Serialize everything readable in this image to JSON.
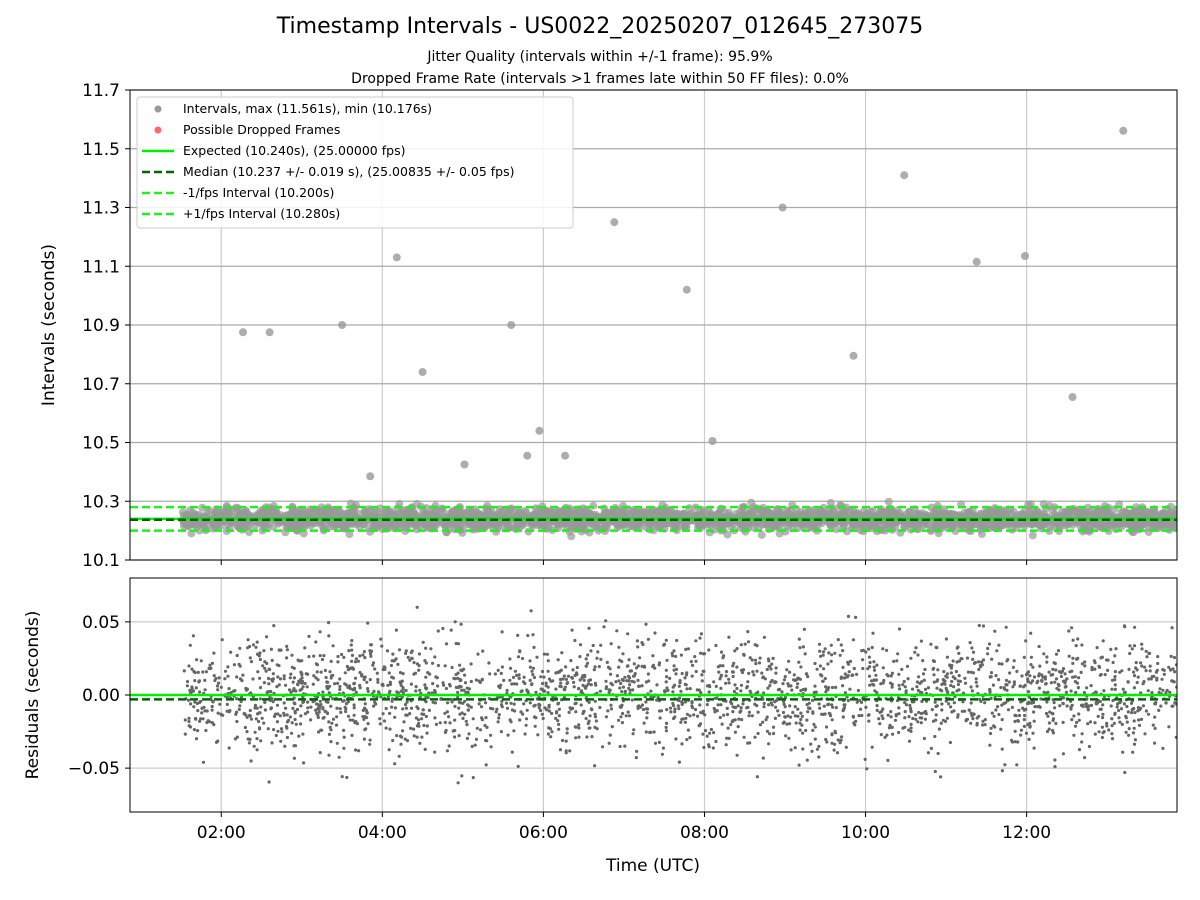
{
  "title": "Timestamp Intervals - US0022_20250207_012645_273075",
  "subtitles": [
    "Jitter Quality (intervals within +/-1 frame): 95.9%",
    "Dropped Frame Rate (intervals >1 frames late within 50 FF files): 0.0%"
  ],
  "colors": {
    "points": "#999999",
    "dropped": "#ff6666",
    "expected": "#00ee00",
    "median": "#006600",
    "fps_band": "#22ee22",
    "residual_points": "#666666"
  },
  "chart_data": [
    {
      "type": "scatter",
      "ylabel": "Intervals (seconds)",
      "xlim": [
        0.867,
        13.867
      ],
      "ylim": [
        10.1,
        11.7
      ],
      "yticks": [
        "10.1",
        "10.3",
        "10.5",
        "10.7",
        "10.9",
        "11.1",
        "11.3",
        "11.5",
        "11.7"
      ],
      "xticks": [
        "02:00",
        "04:00",
        "06:00",
        "08:00",
        "10:00",
        "12:00"
      ],
      "grid": true,
      "legend_position": "top-left",
      "legend": [
        "Intervals, max (11.561s), min (10.176s)",
        "Possible Dropped Frames",
        "Expected (10.240s), (25.00000 fps)",
        "Median (10.237 +/- 0.019 s), (25.00835 +/- 0.05 fps)",
        "-1/fps Interval (10.200s)",
        "+1/fps Interval (10.280s)"
      ],
      "lines": {
        "expected": 10.24,
        "median": 10.237,
        "minus_fps": 10.2,
        "plus_fps": 10.28
      },
      "dense_band": {
        "x_range": [
          1.52,
          13.867
        ],
        "y_range": [
          10.18,
          10.3
        ]
      },
      "outliers": [
        {
          "x": 2.27,
          "y": 10.875
        },
        {
          "x": 2.6,
          "y": 10.875
        },
        {
          "x": 3.5,
          "y": 10.9
        },
        {
          "x": 3.85,
          "y": 10.385
        },
        {
          "x": 4.18,
          "y": 11.13
        },
        {
          "x": 4.5,
          "y": 10.74
        },
        {
          "x": 5.02,
          "y": 10.425
        },
        {
          "x": 5.6,
          "y": 10.9
        },
        {
          "x": 5.8,
          "y": 10.455
        },
        {
          "x": 5.95,
          "y": 10.54
        },
        {
          "x": 6.27,
          "y": 10.455
        },
        {
          "x": 6.88,
          "y": 11.25
        },
        {
          "x": 7.78,
          "y": 11.02
        },
        {
          "x": 8.1,
          "y": 10.505
        },
        {
          "x": 8.97,
          "y": 11.3
        },
        {
          "x": 9.85,
          "y": 10.795
        },
        {
          "x": 10.48,
          "y": 11.41
        },
        {
          "x": 11.38,
          "y": 11.115
        },
        {
          "x": 11.98,
          "y": 11.135
        },
        {
          "x": 12.57,
          "y": 10.655
        },
        {
          "x": 13.2,
          "y": 11.561
        }
      ]
    },
    {
      "type": "scatter",
      "xlabel": "Time (UTC)",
      "ylabel": "Residuals (seconds)",
      "xlim": [
        0.867,
        13.867
      ],
      "ylim": [
        -0.08,
        0.08
      ],
      "yticks": [
        "0.05",
        "0.00",
        "−0.05"
      ],
      "yticks_values": [
        0.05,
        0.0,
        -0.05
      ],
      "grid": true,
      "lines": {
        "zero": 0.0,
        "median_offset": -0.003
      },
      "dense_band": {
        "x_range": [
          1.52,
          13.867
        ],
        "y_range": [
          -0.06,
          0.06
        ]
      }
    }
  ]
}
